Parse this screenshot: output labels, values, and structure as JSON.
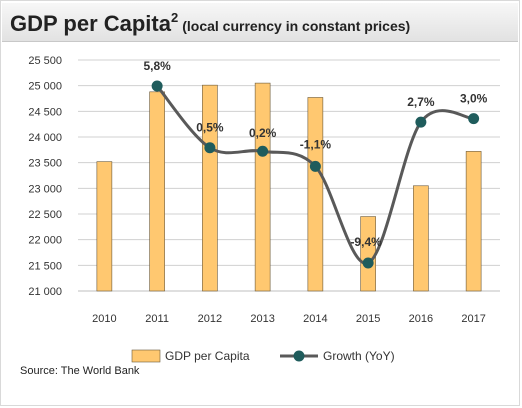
{
  "header": {
    "title": "GDP per Capita",
    "title_superscript": "2",
    "subtitle": "(local currency in constant prices)"
  },
  "source_text": "Source: The World Bank",
  "colors": {
    "bar_fill": "#FFC870",
    "bar_stroke": "#6b5a3a",
    "line": "#595959",
    "marker": "#1F5C5C",
    "grid": "#d0d0d0",
    "label": "#333333"
  },
  "chart_data": {
    "type": "bar",
    "categories": [
      "2010",
      "2011",
      "2012",
      "2013",
      "2014",
      "2015",
      "2016",
      "2017"
    ],
    "y_ticks": [
      "21 000",
      "21 500",
      "22 000",
      "22 500",
      "23 000",
      "23 500",
      "24 000",
      "24 500",
      "25 000",
      "25 500"
    ],
    "ylim": [
      21000,
      25500
    ],
    "grid": true,
    "legend_position": "bottom",
    "series": [
      {
        "name": "GDP per Capita",
        "kind": "bar",
        "values": [
          23520,
          24880,
          25010,
          25050,
          24770,
          22450,
          23050,
          23720
        ]
      },
      {
        "name": "Growth (YoY)",
        "kind": "line",
        "values": [
          null,
          5.8,
          0.5,
          0.2,
          -1.1,
          -9.4,
          2.7,
          3.0
        ],
        "labels": [
          "",
          "5,8%",
          "0,5%",
          "0,2%",
          "-1,1%",
          "-9,4%",
          "2,7%",
          "3,0%"
        ],
        "secondary_range": [
          -9.4,
          5.8
        ]
      }
    ]
  }
}
